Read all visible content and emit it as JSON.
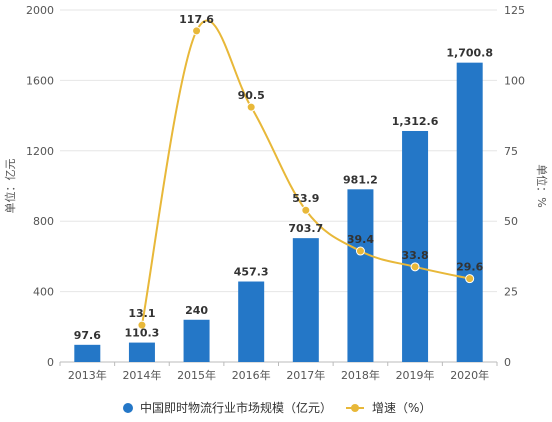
{
  "chart_data": {
    "type": "bar",
    "categories": [
      "2013年",
      "2014年",
      "2015年",
      "2016年",
      "2017年",
      "2018年",
      "2019年",
      "2020年"
    ],
    "series": [
      {
        "name": "中国即时物流行业市场规模（亿元）",
        "type": "bar",
        "axis": "left",
        "values": [
          97.6,
          110.3,
          240,
          457.3,
          703.7,
          981.2,
          1312.6,
          1700.8
        ],
        "labels": [
          "97.6",
          "110.3",
          "240",
          "457.3",
          "703.7",
          "981.2",
          "1,312.6",
          "1,700.8"
        ],
        "color": "#2477c7"
      },
      {
        "name": "增速（%）",
        "type": "line",
        "axis": "right",
        "values": [
          null,
          13.1,
          117.6,
          90.5,
          53.9,
          39.4,
          33.8,
          29.6
        ],
        "labels": [
          "",
          "13.1",
          "117.6",
          "90.5",
          "53.9",
          "39.4",
          "33.8",
          "29.6"
        ],
        "color": "#e8b839"
      }
    ],
    "ylabel": "单位：亿元",
    "y2label": "单位：%",
    "ylim": [
      0,
      2000
    ],
    "yticks": [
      "0",
      "400",
      "800",
      "1200",
      "1600",
      "2000"
    ],
    "y2lim": [
      0,
      125
    ],
    "y2ticks": [
      "0",
      "25",
      "50",
      "75",
      "100",
      "125"
    ],
    "grid": true,
    "legend_position": "bottom"
  }
}
